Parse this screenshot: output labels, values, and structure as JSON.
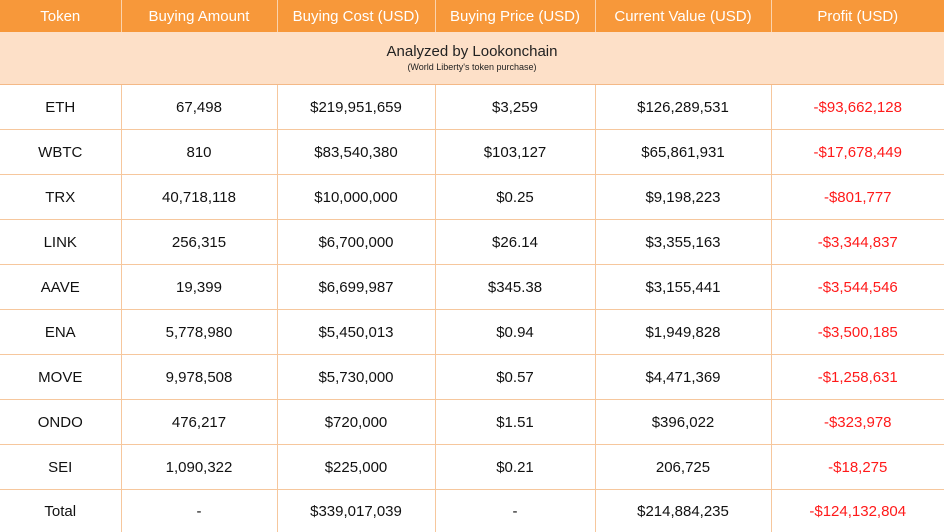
{
  "columns": [
    "Token",
    "Buying Amount",
    "Buying Cost (USD)",
    "Buying Price (USD)",
    "Current Value (USD)",
    "Profit (USD)"
  ],
  "banner": {
    "title": "Analyzed by Lookonchain",
    "subtitle": "(World Liberty's token purchase)"
  },
  "rows": [
    {
      "token": "ETH",
      "amount": "67,498",
      "cost": "$219,951,659",
      "price": "$3,259",
      "value": "$126,289,531",
      "profit": "-$93,662,128"
    },
    {
      "token": "WBTC",
      "amount": "810",
      "cost": "$83,540,380",
      "price": "$103,127",
      "value": "$65,861,931",
      "profit": "-$17,678,449"
    },
    {
      "token": "TRX",
      "amount": "40,718,118",
      "cost": "$10,000,000",
      "price": "$0.25",
      "value": "$9,198,223",
      "profit": "-$801,777"
    },
    {
      "token": "LINK",
      "amount": "256,315",
      "cost": "$6,700,000",
      "price": "$26.14",
      "value": "$3,355,163",
      "profit": "-$3,344,837"
    },
    {
      "token": "AAVE",
      "amount": "19,399",
      "cost": "$6,699,987",
      "price": "$345.38",
      "value": "$3,155,441",
      "profit": "-$3,544,546"
    },
    {
      "token": "ENA",
      "amount": "5,778,980",
      "cost": "$5,450,013",
      "price": "$0.94",
      "value": "$1,949,828",
      "profit": "-$3,500,185"
    },
    {
      "token": "MOVE",
      "amount": "9,978,508",
      "cost": "$5,730,000",
      "price": "$0.57",
      "value": "$4,471,369",
      "profit": "-$1,258,631"
    },
    {
      "token": "ONDO",
      "amount": "476,217",
      "cost": "$720,000",
      "price": "$1.51",
      "value": "$396,022",
      "profit": "-$323,978"
    },
    {
      "token": "SEI",
      "amount": "1,090,322",
      "cost": "$225,000",
      "price": "$0.21",
      "value": "206,725",
      "profit": "-$18,275"
    }
  ],
  "total": {
    "token": "Total",
    "amount": "-",
    "cost": "$339,017,039",
    "price": "-",
    "value": "$214,884,235",
    "profit": "-$124,132,804"
  },
  "colors": {
    "header_bg": "#f7983a",
    "banner_bg": "#fde0c8",
    "loss_text": "#ff1a1a"
  }
}
